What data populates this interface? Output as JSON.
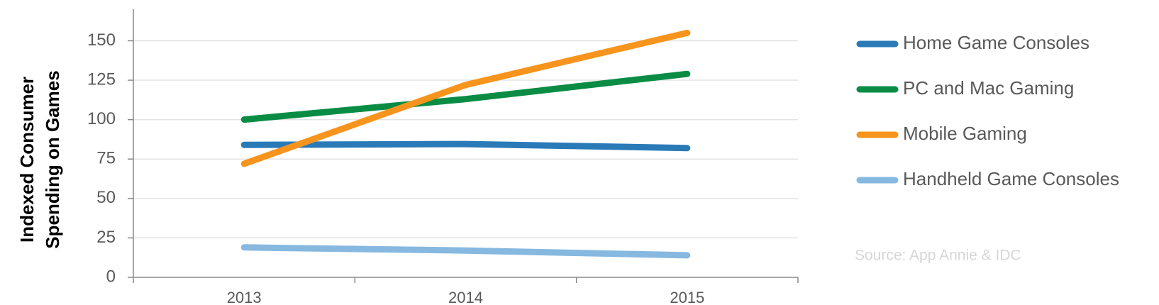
{
  "chart_data": {
    "type": "line",
    "ylabel": [
      "Indexed Consumer",
      "Spending on Games"
    ],
    "categories": [
      "2013",
      "2014",
      "2015"
    ],
    "series": [
      {
        "name": "Home Game Consoles",
        "color": "#2a7ab8",
        "values": [
          84,
          84.5,
          82
        ]
      },
      {
        "name": "PC and Mac Gaming",
        "color": "#0a8c45",
        "values": [
          100,
          113,
          129
        ]
      },
      {
        "name": "Mobile Gaming",
        "color": "#f7941d",
        "values": [
          72,
          122,
          155
        ]
      },
      {
        "name": "Handheld Game Consoles",
        "color": "#86b8e0",
        "values": [
          19,
          17,
          14
        ]
      }
    ],
    "ylim": [
      0,
      170
    ],
    "yticks": [
      0,
      25,
      50,
      75,
      100,
      125,
      150
    ],
    "grid": true,
    "legend": "right",
    "annotation": "Source: App Annie & IDC"
  }
}
